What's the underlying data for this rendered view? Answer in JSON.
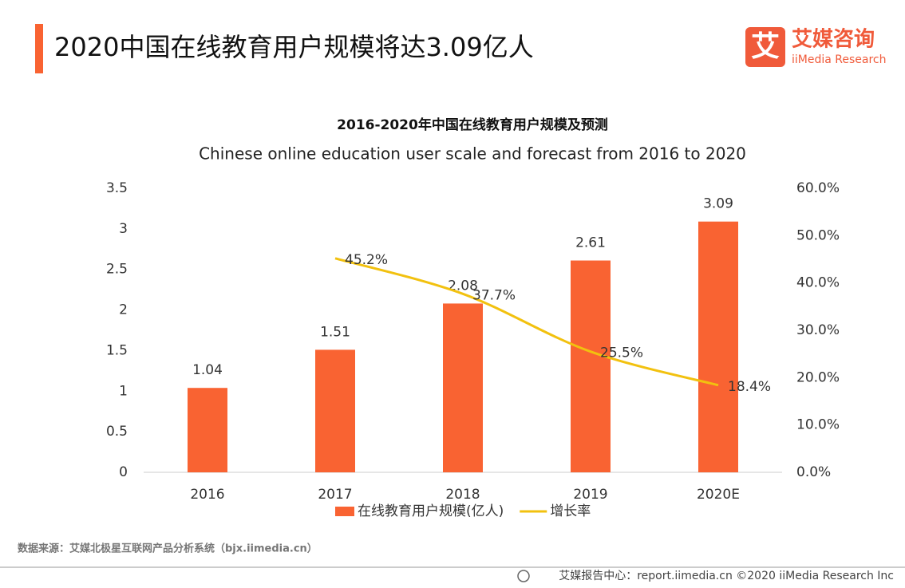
{
  "header": {
    "title": "2020中国在线教育用户规模将达3.09亿人",
    "logo_cn": "艾媒咨询",
    "logo_en": "iiMedia Research",
    "logo_icon": "艾"
  },
  "chart_data": {
    "type": "bar",
    "title": "2016-2020年中国在线教育用户规模及预测",
    "subtitle": "Chinese online education user scale and forecast from 2016 to 2020",
    "categories": [
      "2016",
      "2017",
      "2018",
      "2019",
      "2020E"
    ],
    "series": [
      {
        "name": "在线教育用户规模(亿人)",
        "type": "bar",
        "color": "#f96332",
        "values": [
          1.04,
          1.51,
          2.08,
          2.61,
          3.09
        ]
      },
      {
        "name": "增长率",
        "type": "line",
        "axis": "y2",
        "color": "#f2c10f",
        "values": [
          null,
          45.2,
          37.7,
          25.5,
          18.4
        ],
        "value_labels": [
          null,
          "45.2%",
          "37.7%",
          "25.5%",
          "18.4%"
        ]
      }
    ],
    "ylim": [
      0,
      3.5
    ],
    "yticks": [
      0,
      0.5,
      1,
      1.5,
      2,
      2.5,
      3,
      3.5
    ],
    "y2lim": [
      0,
      60
    ],
    "y2ticks": [
      {
        "value": 0,
        "label": "0.0%"
      },
      {
        "value": 10,
        "label": "10.0%"
      },
      {
        "value": 20,
        "label": "20.0%"
      },
      {
        "value": 30,
        "label": "30.0%"
      },
      {
        "value": 40,
        "label": "40.0%"
      },
      {
        "value": 50,
        "label": "50.0%"
      },
      {
        "value": 60,
        "label": "60.0%"
      }
    ],
    "legend": "bottom"
  },
  "source": "数据来源：艾媒北极星互联网产品分析系统（bjx.iimedia.cn）",
  "footer": "艾媒报告中心：report.iimedia.cn  ©2020 iiMedia Research  Inc"
}
